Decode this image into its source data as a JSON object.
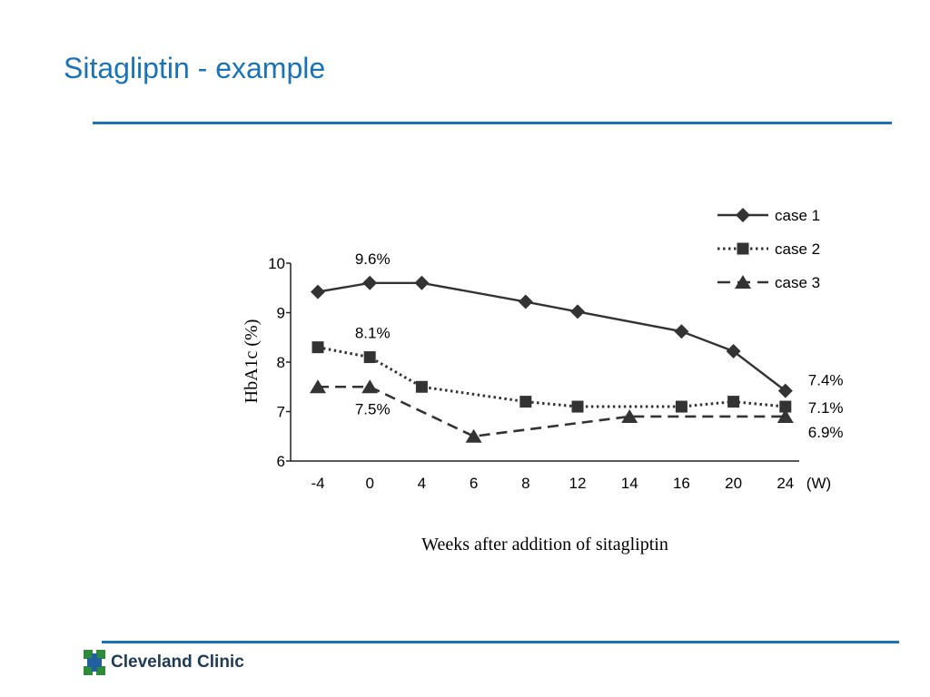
{
  "slide": {
    "title": "Sitagliptin - example"
  },
  "logo": {
    "text": "Cleveland Clinic",
    "colors": {
      "green": "#2e8b3a",
      "blue": "#1f5fa0"
    }
  },
  "colors": {
    "title": "#1a73b8",
    "rule": "#1a73b8",
    "series": "#333333",
    "axis": "#222222"
  },
  "chart_data": {
    "type": "line",
    "title": "",
    "xlabel": "Weeks after addition of sitagliptin",
    "ylabel": "HbA1c (%)",
    "x_unit_label": "(W)",
    "categories": [
      "-4",
      "0",
      "4",
      "6",
      "8",
      "12",
      "14",
      "16",
      "20",
      "24"
    ],
    "yticks": [
      6,
      7,
      8,
      9,
      10
    ],
    "ylim": [
      6,
      10
    ],
    "legend_position": "top-right",
    "series": [
      {
        "name": "case 1",
        "style": "solid",
        "marker": "diamond",
        "points": [
          {
            "x": "-4",
            "y": 9.42
          },
          {
            "x": "0",
            "y": 9.6
          },
          {
            "x": "4",
            "y": 9.6
          },
          {
            "x": "8",
            "y": 9.22
          },
          {
            "x": "12",
            "y": 9.02
          },
          {
            "x": "16",
            "y": 8.62
          },
          {
            "x": "20",
            "y": 8.22
          },
          {
            "x": "24",
            "y": 7.42
          }
        ]
      },
      {
        "name": "case 2",
        "style": "dotted",
        "marker": "square",
        "points": [
          {
            "x": "-4",
            "y": 8.3
          },
          {
            "x": "0",
            "y": 8.1
          },
          {
            "x": "4",
            "y": 7.5
          },
          {
            "x": "8",
            "y": 7.2
          },
          {
            "x": "12",
            "y": 7.1
          },
          {
            "x": "16",
            "y": 7.1
          },
          {
            "x": "20",
            "y": 7.2
          },
          {
            "x": "24",
            "y": 7.1
          }
        ]
      },
      {
        "name": "case 3",
        "style": "dashed",
        "marker": "triangle",
        "points": [
          {
            "x": "-4",
            "y": 7.5
          },
          {
            "x": "0",
            "y": 7.5
          },
          {
            "x": "6",
            "y": 6.5
          },
          {
            "x": "14",
            "y": 6.9
          },
          {
            "x": "24",
            "y": 6.9
          }
        ]
      }
    ],
    "annotations": [
      {
        "text": "9.6%",
        "series": "case 1",
        "x": "0",
        "y": 9.6,
        "placement": "above"
      },
      {
        "text": "8.1%",
        "series": "case 2",
        "x": "0",
        "y": 8.1,
        "placement": "above"
      },
      {
        "text": "7.5%",
        "series": "case 3",
        "x": "0",
        "y": 7.5,
        "placement": "below"
      },
      {
        "text": "7.4%",
        "series": "case 1",
        "x": "24",
        "y": 7.42,
        "placement": "right"
      },
      {
        "text": "7.1%",
        "series": "case 2",
        "x": "24",
        "y": 7.1,
        "placement": "right"
      },
      {
        "text": "6.9%",
        "series": "case 3",
        "x": "24",
        "y": 6.9,
        "placement": "right"
      }
    ]
  }
}
